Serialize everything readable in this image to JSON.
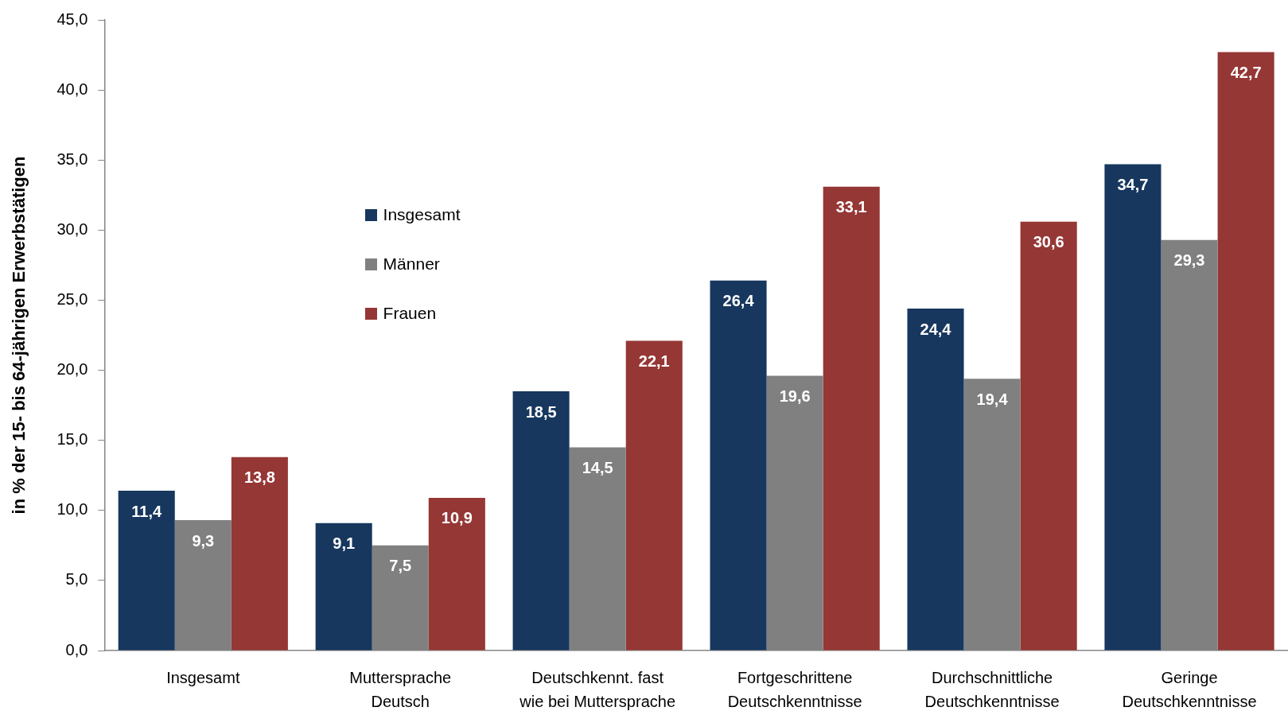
{
  "chart_data": {
    "type": "bar",
    "ylabel": "in % der 15- bis 64-jährigen Erwerbstätigen",
    "categories": [
      "Insgesamt",
      "Muttersprache\nDeutsch",
      "Deutschkennt. fast\nwie bei Muttersprache",
      "Fortgeschrittene\nDeutschkenntnisse",
      "Durchschnittliche\nDeutschkenntnisse",
      "Geringe\nDeutschkenntnisse"
    ],
    "series": [
      {
        "name": "Insgesamt",
        "color": "#17375e",
        "values": [
          11.4,
          9.1,
          18.5,
          26.4,
          24.4,
          34.7
        ],
        "value_labels": [
          "11,4",
          "9,1",
          "18,5",
          "26,4",
          "24,4",
          "34,7"
        ]
      },
      {
        "name": "Männer",
        "color": "#808080",
        "values": [
          9.3,
          7.5,
          14.5,
          19.6,
          19.4,
          29.3
        ],
        "value_labels": [
          "9,3",
          "7,5",
          "14,5",
          "19,6",
          "19,4",
          "29,3"
        ]
      },
      {
        "name": "Frauen",
        "color": "#953735",
        "values": [
          13.8,
          10.9,
          22.1,
          33.1,
          30.6,
          42.7
        ],
        "value_labels": [
          "13,8",
          "10,9",
          "22,1",
          "33,1",
          "30,6",
          "42,7"
        ]
      }
    ],
    "ylim": [
      0,
      45
    ],
    "yticks": [
      {
        "value": 0,
        "label": "0,0"
      },
      {
        "value": 5,
        "label": "5,0"
      },
      {
        "value": 10,
        "label": "10,0"
      },
      {
        "value": 15,
        "label": "15,0"
      },
      {
        "value": 20,
        "label": "20,0"
      },
      {
        "value": 25,
        "label": "25,0"
      },
      {
        "value": 30,
        "label": "30,0"
      },
      {
        "value": 35,
        "label": "35,0"
      },
      {
        "value": 40,
        "label": "40,0"
      },
      {
        "value": 45,
        "label": "45,0"
      }
    ],
    "legend": "top left"
  }
}
